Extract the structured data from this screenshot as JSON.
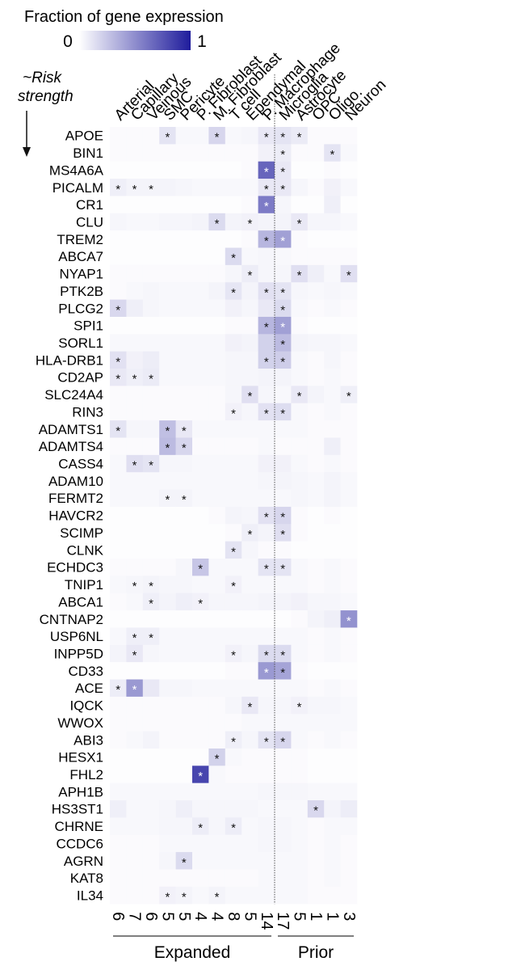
{
  "chart_data": {
    "type": "heatmap",
    "title": "Fraction of gene expression",
    "colorbar": {
      "min_label": "0",
      "max_label": "1",
      "min_color": "#ffffff",
      "max_color": "#1f1c9c"
    },
    "ylabel": "~Risk strength",
    "columns": [
      "Arterial",
      "Capillary",
      "Veinous",
      "SMC",
      "Pericyte",
      "P. Fibroblast",
      "M. Fibroblast",
      "T cell",
      "Ependymal",
      "P. Macrophage",
      "Microglia",
      "Astrocyte",
      "OPC",
      "Oligo.",
      "Neuron"
    ],
    "rows": [
      "APOE",
      "BIN1",
      "MS4A6A",
      "PICALM",
      "CR1",
      "CLU",
      "TREM2",
      "ABCA7",
      "NYAP1",
      "PTK2B",
      "PLCG2",
      "SPI1",
      "SORL1",
      "HLA-DRB1",
      "CD2AP",
      "SLC24A4",
      "RIN3",
      "ADAMTS1",
      "ADAMTS4",
      "CASS4",
      "ADAM10",
      "FERMT2",
      "HAVCR2",
      "SCIMP",
      "CLNK",
      "ECHDC3",
      "TNIP1",
      "ABCA1",
      "CNTNAP2",
      "USP6NL",
      "INPP5D",
      "CD33",
      "ACE",
      "IQCK",
      "WWOX",
      "ABI3",
      "HESX1",
      "FHL2",
      "APH1B",
      "HS3ST1",
      "CHRNE",
      "CCDC6",
      "AGRN",
      "KAT8",
      "IL34"
    ],
    "values": [
      [
        0.02,
        0.02,
        0.02,
        0.12,
        0.03,
        0.03,
        0.18,
        0.03,
        0.04,
        0.1,
        0.12,
        0.09,
        0.02,
        0.02,
        0.02
      ],
      [
        0.02,
        0.02,
        0.02,
        0.02,
        0.02,
        0.02,
        0.02,
        0.02,
        0.02,
        0.06,
        0.08,
        0.02,
        0.02,
        0.12,
        0.03
      ],
      [
        0.01,
        0.01,
        0.01,
        0.01,
        0.01,
        0.01,
        0.01,
        0.01,
        0.02,
        0.68,
        0.1,
        0.01,
        0.01,
        0.02,
        0.01
      ],
      [
        0.07,
        0.05,
        0.05,
        0.05,
        0.04,
        0.03,
        0.03,
        0.03,
        0.03,
        0.1,
        0.1,
        0.04,
        0.02,
        0.06,
        0.03
      ],
      [
        0.01,
        0.01,
        0.01,
        0.01,
        0.01,
        0.01,
        0.01,
        0.01,
        0.02,
        0.58,
        0.04,
        0.01,
        0.01,
        0.07,
        0.01
      ],
      [
        0.04,
        0.03,
        0.03,
        0.04,
        0.04,
        0.05,
        0.16,
        0.05,
        0.06,
        0.05,
        0.05,
        0.1,
        0.04,
        0.04,
        0.03
      ],
      [
        0.01,
        0.01,
        0.01,
        0.01,
        0.01,
        0.01,
        0.01,
        0.01,
        0.02,
        0.32,
        0.42,
        0.02,
        0.01,
        0.01,
        0.01
      ],
      [
        0.01,
        0.01,
        0.01,
        0.01,
        0.01,
        0.01,
        0.01,
        0.16,
        0.03,
        0.04,
        0.03,
        0.02,
        0.02,
        0.02,
        0.02
      ],
      [
        0.02,
        0.02,
        0.02,
        0.02,
        0.02,
        0.02,
        0.02,
        0.04,
        0.08,
        0.04,
        0.04,
        0.14,
        0.07,
        0.03,
        0.14
      ],
      [
        0.02,
        0.03,
        0.04,
        0.03,
        0.03,
        0.03,
        0.05,
        0.11,
        0.05,
        0.13,
        0.12,
        0.04,
        0.03,
        0.04,
        0.03
      ],
      [
        0.17,
        0.07,
        0.04,
        0.03,
        0.03,
        0.03,
        0.03,
        0.06,
        0.04,
        0.1,
        0.16,
        0.03,
        0.02,
        0.03,
        0.02
      ],
      [
        0.01,
        0.01,
        0.01,
        0.01,
        0.01,
        0.01,
        0.01,
        0.02,
        0.02,
        0.32,
        0.42,
        0.02,
        0.01,
        0.01,
        0.01
      ],
      [
        0.03,
        0.03,
        0.03,
        0.03,
        0.03,
        0.03,
        0.03,
        0.06,
        0.05,
        0.2,
        0.3,
        0.05,
        0.04,
        0.04,
        0.03
      ],
      [
        0.13,
        0.06,
        0.08,
        0.03,
        0.03,
        0.03,
        0.03,
        0.04,
        0.04,
        0.2,
        0.22,
        0.03,
        0.02,
        0.04,
        0.02
      ],
      [
        0.1,
        0.07,
        0.09,
        0.03,
        0.03,
        0.03,
        0.03,
        0.04,
        0.04,
        0.05,
        0.05,
        0.03,
        0.02,
        0.03,
        0.02
      ],
      [
        0.02,
        0.02,
        0.02,
        0.02,
        0.02,
        0.02,
        0.02,
        0.04,
        0.14,
        0.04,
        0.03,
        0.1,
        0.05,
        0.03,
        0.07
      ],
      [
        0.02,
        0.02,
        0.02,
        0.02,
        0.02,
        0.02,
        0.02,
        0.06,
        0.04,
        0.13,
        0.15,
        0.03,
        0.02,
        0.03,
        0.02
      ],
      [
        0.12,
        0.04,
        0.04,
        0.28,
        0.1,
        0.03,
        0.03,
        0.03,
        0.03,
        0.03,
        0.03,
        0.03,
        0.02,
        0.02,
        0.02
      ],
      [
        0.02,
        0.02,
        0.02,
        0.3,
        0.18,
        0.02,
        0.02,
        0.02,
        0.02,
        0.03,
        0.02,
        0.02,
        0.02,
        0.07,
        0.02
      ],
      [
        0.03,
        0.14,
        0.12,
        0.04,
        0.04,
        0.03,
        0.03,
        0.03,
        0.03,
        0.06,
        0.06,
        0.03,
        0.02,
        0.03,
        0.02
      ],
      [
        0.03,
        0.03,
        0.03,
        0.03,
        0.03,
        0.03,
        0.03,
        0.03,
        0.03,
        0.04,
        0.05,
        0.04,
        0.03,
        0.05,
        0.03
      ],
      [
        0.03,
        0.03,
        0.03,
        0.05,
        0.05,
        0.03,
        0.03,
        0.03,
        0.03,
        0.03,
        0.03,
        0.04,
        0.03,
        0.05,
        0.03
      ],
      [
        0.01,
        0.01,
        0.01,
        0.01,
        0.01,
        0.01,
        0.02,
        0.05,
        0.04,
        0.13,
        0.18,
        0.02,
        0.01,
        0.02,
        0.01
      ],
      [
        0.01,
        0.01,
        0.01,
        0.01,
        0.01,
        0.01,
        0.01,
        0.02,
        0.07,
        0.05,
        0.14,
        0.02,
        0.01,
        0.01,
        0.01
      ],
      [
        0.01,
        0.01,
        0.01,
        0.01,
        0.01,
        0.01,
        0.01,
        0.12,
        0.04,
        0.02,
        0.02,
        0.01,
        0.01,
        0.01,
        0.01
      ],
      [
        0.02,
        0.02,
        0.02,
        0.02,
        0.04,
        0.25,
        0.03,
        0.03,
        0.03,
        0.12,
        0.12,
        0.03,
        0.02,
        0.03,
        0.02
      ],
      [
        0.03,
        0.04,
        0.05,
        0.04,
        0.04,
        0.03,
        0.03,
        0.06,
        0.03,
        0.03,
        0.03,
        0.03,
        0.02,
        0.03,
        0.02
      ],
      [
        0.02,
        0.03,
        0.07,
        0.05,
        0.07,
        0.06,
        0.04,
        0.04,
        0.04,
        0.05,
        0.05,
        0.06,
        0.04,
        0.04,
        0.03
      ],
      [
        0.01,
        0.01,
        0.01,
        0.01,
        0.01,
        0.01,
        0.01,
        0.01,
        0.01,
        0.01,
        0.01,
        0.02,
        0.05,
        0.07,
        0.48
      ],
      [
        0.03,
        0.07,
        0.07,
        0.03,
        0.03,
        0.03,
        0.03,
        0.03,
        0.03,
        0.03,
        0.03,
        0.03,
        0.02,
        0.03,
        0.02
      ],
      [
        0.05,
        0.1,
        0.04,
        0.03,
        0.03,
        0.03,
        0.03,
        0.06,
        0.04,
        0.16,
        0.16,
        0.03,
        0.02,
        0.03,
        0.02
      ],
      [
        0.01,
        0.01,
        0.01,
        0.01,
        0.01,
        0.01,
        0.01,
        0.02,
        0.02,
        0.45,
        0.4,
        0.02,
        0.01,
        0.01,
        0.01
      ],
      [
        0.08,
        0.45,
        0.1,
        0.04,
        0.04,
        0.03,
        0.03,
        0.03,
        0.03,
        0.03,
        0.03,
        0.03,
        0.02,
        0.03,
        0.02
      ],
      [
        0.02,
        0.02,
        0.02,
        0.02,
        0.02,
        0.02,
        0.02,
        0.04,
        0.1,
        0.04,
        0.04,
        0.06,
        0.04,
        0.04,
        0.03
      ],
      [
        0.02,
        0.02,
        0.02,
        0.02,
        0.02,
        0.02,
        0.02,
        0.02,
        0.03,
        0.03,
        0.03,
        0.03,
        0.03,
        0.03,
        0.03
      ],
      [
        0.02,
        0.03,
        0.05,
        0.02,
        0.02,
        0.02,
        0.02,
        0.07,
        0.04,
        0.12,
        0.18,
        0.03,
        0.02,
        0.03,
        0.02
      ],
      [
        0.01,
        0.01,
        0.01,
        0.01,
        0.01,
        0.01,
        0.2,
        0.03,
        0.02,
        0.02,
        0.02,
        0.02,
        0.01,
        0.01,
        0.01
      ],
      [
        0.01,
        0.01,
        0.01,
        0.01,
        0.01,
        0.82,
        0.03,
        0.02,
        0.02,
        0.02,
        0.02,
        0.02,
        0.01,
        0.01,
        0.01
      ],
      [
        0.03,
        0.03,
        0.03,
        0.03,
        0.03,
        0.03,
        0.03,
        0.03,
        0.03,
        0.04,
        0.04,
        0.04,
        0.03,
        0.03,
        0.03
      ],
      [
        0.07,
        0.03,
        0.03,
        0.04,
        0.07,
        0.04,
        0.04,
        0.04,
        0.04,
        0.03,
        0.03,
        0.03,
        0.17,
        0.05,
        0.08
      ],
      [
        0.03,
        0.03,
        0.03,
        0.04,
        0.04,
        0.08,
        0.04,
        0.08,
        0.03,
        0.04,
        0.04,
        0.03,
        0.02,
        0.03,
        0.03
      ],
      [
        0.02,
        0.02,
        0.02,
        0.03,
        0.03,
        0.03,
        0.03,
        0.03,
        0.03,
        0.04,
        0.04,
        0.03,
        0.02,
        0.03,
        0.02
      ],
      [
        0.02,
        0.02,
        0.02,
        0.04,
        0.16,
        0.03,
        0.03,
        0.03,
        0.03,
        0.03,
        0.03,
        0.03,
        0.02,
        0.03,
        0.02
      ],
      [
        0.02,
        0.02,
        0.02,
        0.02,
        0.02,
        0.02,
        0.02,
        0.02,
        0.02,
        0.03,
        0.03,
        0.03,
        0.02,
        0.03,
        0.02
      ],
      [
        0.02,
        0.02,
        0.02,
        0.06,
        0.05,
        0.03,
        0.05,
        0.03,
        0.03,
        0.03,
        0.03,
        0.03,
        0.02,
        0.02,
        0.02
      ]
    ],
    "significant": [
      [
        3,
        6,
        9,
        10,
        11
      ],
      [
        10,
        13
      ],
      [
        9,
        10
      ],
      [
        0,
        1,
        2,
        9,
        10
      ],
      [
        9
      ],
      [
        6,
        8,
        11
      ],
      [
        9,
        10
      ],
      [
        7
      ],
      [
        8,
        11,
        14
      ],
      [
        7,
        9,
        10
      ],
      [
        0,
        10
      ],
      [
        9,
        10
      ],
      [
        10
      ],
      [
        0,
        9,
        10
      ],
      [
        0,
        1,
        2
      ],
      [
        8,
        11,
        14
      ],
      [
        7,
        9,
        10
      ],
      [
        0,
        3,
        4
      ],
      [
        3,
        4
      ],
      [
        1,
        2
      ],
      [],
      [
        3,
        4
      ],
      [
        9,
        10
      ],
      [
        8,
        10
      ],
      [
        7
      ],
      [
        5,
        9,
        10
      ],
      [
        1,
        2,
        7
      ],
      [
        2,
        5
      ],
      [
        14
      ],
      [
        1,
        2
      ],
      [
        1,
        7,
        9,
        10
      ],
      [
        9,
        10
      ],
      [
        0,
        1
      ],
      [
        8,
        11
      ],
      [],
      [
        7,
        9,
        10
      ],
      [
        6
      ],
      [
        5
      ],
      [],
      [
        12
      ],
      [
        5,
        7
      ],
      [],
      [
        4
      ],
      [],
      [
        3,
        4,
        6
      ]
    ],
    "column_counts": [
      "6",
      "7",
      "6",
      "5",
      "5",
      "4",
      "4",
      "8",
      "5",
      "14",
      "17",
      "5",
      "1",
      "1",
      "3"
    ],
    "groups": [
      {
        "label": "Expanded",
        "first_col": 0,
        "last_col": 9
      },
      {
        "label": "Prior",
        "first_col": 10,
        "last_col": 14
      }
    ]
  }
}
